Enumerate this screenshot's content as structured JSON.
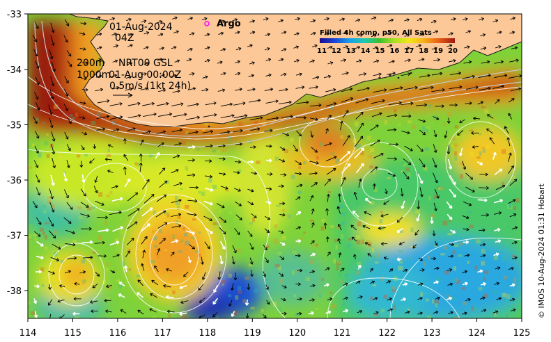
{
  "map": {
    "date_line": "01-Aug-2024",
    "time_line": "04Z",
    "depth_label_1": "200m",
    "depth_label_2": "1000m",
    "product_line": "NRT00 GSL",
    "product_time": "01-Aug 00:00Z",
    "scale_label": "0.5m/s (1kt 24h)",
    "argo_label": "Argo",
    "colorbar_title": "Filled 4h comp, p50, All Sats",
    "colorbar_ticks": [
      "11",
      "12",
      "13",
      "14",
      "15",
      "16",
      "17",
      "18",
      "19",
      "20"
    ],
    "x_ticks": [
      "114",
      "115",
      "116",
      "117",
      "118",
      "119",
      "120",
      "121",
      "122",
      "123",
      "124",
      "125"
    ],
    "y_ticks": [
      "-33",
      "-34",
      "-35",
      "-36",
      "-37",
      "-38"
    ],
    "credit": "© IMOS 10-Aug-2024 01:31 Hobart",
    "colors": {
      "land": "#fcc898",
      "argo_marker": "#ff00ff",
      "sst_warm": "#b02a14",
      "sst_mid": "#8ee020",
      "sst_cool": "#1e9ae8"
    }
  }
}
